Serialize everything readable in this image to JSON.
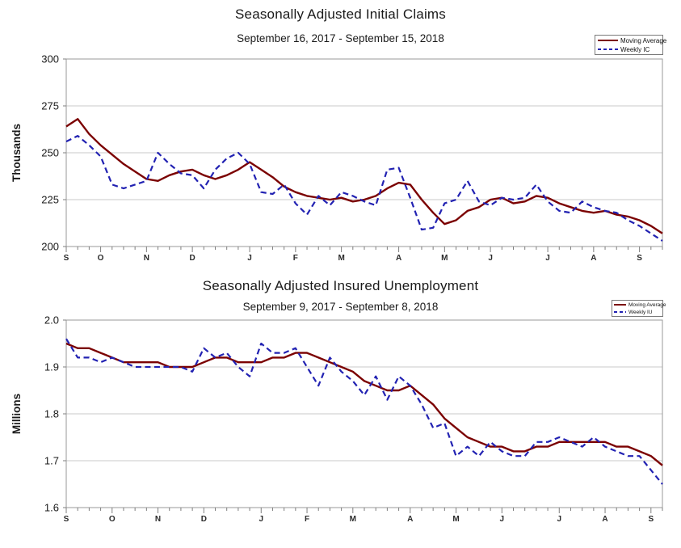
{
  "page": {
    "background": "#ffffff"
  },
  "chart_data": [
    {
      "type": "line",
      "title": "Seasonally Adjusted Initial Claims",
      "subtitle": "September 16, 2017 - September 15, 2018",
      "ylabel": "Thousands",
      "ylim": [
        200,
        300
      ],
      "ytick_labels": [
        "200",
        "225",
        "250",
        "275",
        "300"
      ],
      "ytick_values": [
        200,
        225,
        250,
        275,
        300
      ],
      "grid": true,
      "legend_position": "top-right",
      "x_unit": "weekly",
      "month_tick_labels": [
        "S",
        "O",
        "N",
        "D",
        "J",
        "F",
        "M",
        "A",
        "M",
        "J",
        "J",
        "A",
        "S"
      ],
      "month_tick_week_indices": [
        0,
        3,
        7,
        11,
        16,
        20,
        24,
        29,
        33,
        37,
        42,
        46,
        50
      ],
      "series": [
        {
          "name": "Moving Average",
          "style": "solid",
          "color": "#7b0101",
          "values": [
            264,
            268,
            260,
            254,
            249,
            244,
            240,
            236,
            235,
            238,
            240,
            241,
            238,
            236,
            238,
            241,
            245,
            241,
            237,
            232,
            229,
            227,
            226,
            225,
            226,
            224,
            225,
            227,
            231,
            234,
            233,
            225,
            218,
            212,
            214,
            219,
            221,
            225,
            226,
            223,
            224,
            227,
            226,
            223,
            221,
            219,
            218,
            219,
            217,
            216,
            214,
            211,
            207
          ]
        },
        {
          "name": "Weekly IC",
          "style": "dashed",
          "color": "#2222b2",
          "values": [
            256,
            259,
            254,
            248,
            233,
            231,
            233,
            235,
            250,
            244,
            239,
            238,
            231,
            241,
            247,
            250,
            244,
            229,
            228,
            233,
            223,
            217,
            227,
            222,
            229,
            227,
            224,
            222,
            241,
            242,
            226,
            209,
            210,
            223,
            225,
            235,
            224,
            222,
            226,
            225,
            226,
            233,
            224,
            219,
            218,
            224,
            221,
            219,
            218,
            214,
            211,
            207,
            203
          ]
        }
      ]
    },
    {
      "type": "line",
      "title": "Seasonally Adjusted Insured Unemployment",
      "subtitle": "September 9, 2017 - September 8, 2018",
      "ylabel": "Millions",
      "ylim": [
        1.6,
        2.0
      ],
      "ytick_labels": [
        "1.6",
        "1.7",
        "1.8",
        "1.9",
        "2.0"
      ],
      "ytick_values": [
        1.6,
        1.7,
        1.8,
        1.9,
        2.0
      ],
      "grid": true,
      "legend_position": "top-right",
      "x_unit": "weekly",
      "month_tick_labels": [
        "S",
        "O",
        "N",
        "D",
        "J",
        "F",
        "M",
        "A",
        "M",
        "J",
        "J",
        "A",
        "S"
      ],
      "month_tick_week_indices": [
        0,
        4,
        8,
        12,
        17,
        21,
        25,
        30,
        34,
        38,
        43,
        47,
        51
      ],
      "series": [
        {
          "name": "Moving Average",
          "style": "solid",
          "color": "#7b0101",
          "values": [
            1.95,
            1.94,
            1.94,
            1.93,
            1.92,
            1.91,
            1.91,
            1.91,
            1.91,
            1.9,
            1.9,
            1.9,
            1.91,
            1.92,
            1.92,
            1.91,
            1.91,
            1.91,
            1.92,
            1.92,
            1.93,
            1.93,
            1.92,
            1.91,
            1.9,
            1.89,
            1.87,
            1.86,
            1.85,
            1.85,
            1.86,
            1.84,
            1.82,
            1.79,
            1.77,
            1.75,
            1.74,
            1.73,
            1.73,
            1.72,
            1.72,
            1.73,
            1.73,
            1.74,
            1.74,
            1.74,
            1.74,
            1.74,
            1.73,
            1.73,
            1.72,
            1.71,
            1.69
          ]
        },
        {
          "name": "Weekly IU",
          "style": "dashed",
          "color": "#2222b2",
          "values": [
            1.96,
            1.92,
            1.92,
            1.91,
            1.92,
            1.91,
            1.9,
            1.9,
            1.9,
            1.9,
            1.9,
            1.89,
            1.94,
            1.92,
            1.93,
            1.9,
            1.88,
            1.95,
            1.93,
            1.93,
            1.94,
            1.9,
            1.86,
            1.92,
            1.89,
            1.87,
            1.84,
            1.88,
            1.83,
            1.88,
            1.86,
            1.82,
            1.77,
            1.78,
            1.71,
            1.73,
            1.71,
            1.74,
            1.72,
            1.71,
            1.71,
            1.74,
            1.74,
            1.75,
            1.74,
            1.73,
            1.75,
            1.73,
            1.72,
            1.71,
            1.71,
            1.68,
            1.65
          ]
        }
      ]
    }
  ],
  "colors": {
    "moving_average_line": "#7b0101",
    "weekly_line": "#2222b2",
    "gridline": "#c8c8c8",
    "plot_border": "#9a9a9a",
    "tick": "#7f7f7f",
    "text": "#1a1a1a"
  }
}
